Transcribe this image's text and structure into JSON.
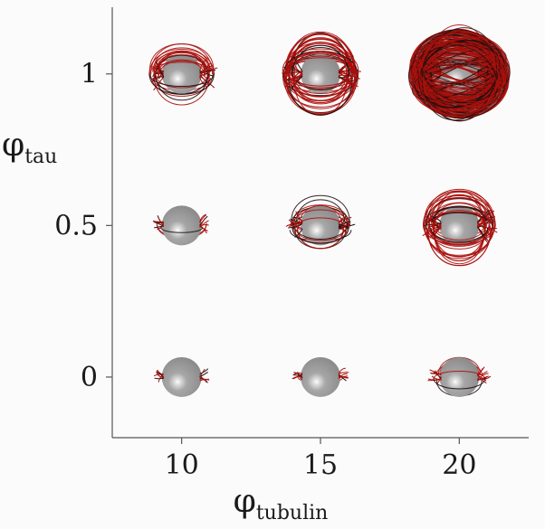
{
  "chart_data": {
    "type": "scatter",
    "title": "",
    "xlabel": {
      "symbol": "φ",
      "subscript": "tubulin"
    },
    "ylabel": {
      "symbol": "φ",
      "subscript": "tau"
    },
    "x_ticks": [
      "10",
      "15",
      "20"
    ],
    "y_ticks": [
      "1",
      "0.5",
      "0"
    ],
    "x": [
      10,
      15,
      20
    ],
    "y": [
      0,
      0.5,
      1
    ],
    "xlim": [
      7.5,
      22.5
    ],
    "ylim": [
      -0.2,
      1.22
    ],
    "grid": false,
    "legend": "none",
    "marker": "grey sphere with red/black filament bundle",
    "points": [
      {
        "x": 10,
        "y": 0,
        "filament_extent": 0.05
      },
      {
        "x": 15,
        "y": 0,
        "filament_extent": 0.1
      },
      {
        "x": 20,
        "y": 0,
        "filament_extent": 0.3
      },
      {
        "x": 10,
        "y": 0.5,
        "filament_extent": 0.2
      },
      {
        "x": 15,
        "y": 0.5,
        "filament_extent": 0.5
      },
      {
        "x": 20,
        "y": 0.5,
        "filament_extent": 0.8
      },
      {
        "x": 10,
        "y": 1,
        "filament_extent": 0.6
      },
      {
        "x": 15,
        "y": 1,
        "filament_extent": 0.9
      },
      {
        "x": 20,
        "y": 1,
        "filament_extent": 1.0
      }
    ]
  },
  "colors": {
    "sphere": "#9a9a9a",
    "filament": "#a8100c",
    "filament_dark": "#1c1010",
    "axis": "#555555"
  }
}
